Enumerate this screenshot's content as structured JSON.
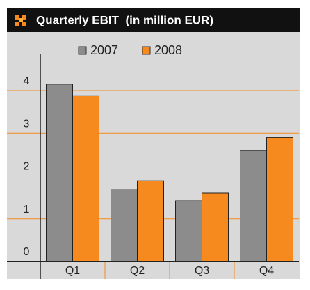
{
  "chart_data": {
    "type": "bar",
    "title": "Quarterly EBIT  (in million EUR)",
    "categories": [
      "Q1",
      "Q2",
      "Q3",
      "Q4"
    ],
    "series": [
      {
        "name": "2007",
        "color": "#8c8c8c",
        "values": [
          4.15,
          1.68,
          1.42,
          2.6
        ]
      },
      {
        "name": "2008",
        "color": "#f68a1f",
        "values": [
          3.88,
          1.89,
          1.6,
          2.9
        ]
      }
    ],
    "ylim": [
      0,
      4.6
    ],
    "yticks": [
      0,
      1,
      2,
      3,
      4
    ],
    "grid": true,
    "grid_color": "#f68a1f",
    "legend": "top"
  }
}
